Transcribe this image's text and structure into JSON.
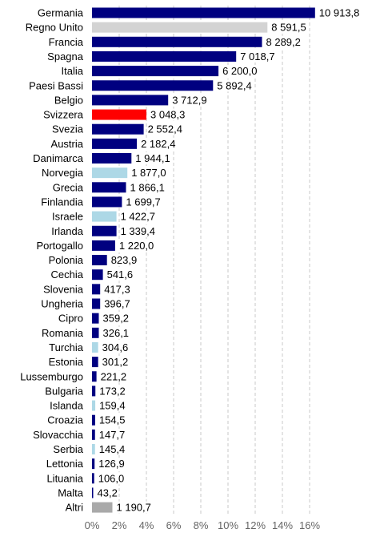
{
  "chart_data": {
    "type": "bar",
    "orientation": "horizontal",
    "categories": [
      "Germania",
      "Regno Unito",
      "Francia",
      "Spagna",
      "Italia",
      "Paesi Bassi",
      "Belgio",
      "Svizzera",
      "Svezia",
      "Austria",
      "Danimarca",
      "Norvegia",
      "Grecia",
      "Finlandia",
      "Israele",
      "Irlanda",
      "Portogallo",
      "Polonia",
      "Cechia",
      "Slovenia",
      "Ungheria",
      "Cipro",
      "Romania",
      "Turchia",
      "Estonia",
      "Lussemburgo",
      "Bulgaria",
      "Islanda",
      "Croazia",
      "Slovacchia",
      "Serbia",
      "Lettonia",
      "Lituania",
      "Malta",
      "Altri"
    ],
    "value_labels": [
      "10 913,8",
      "8 591,5",
      "8 289,2",
      "7 018,7",
      "6 200,0",
      "5 892,4",
      "3 712,9",
      "3 048,3",
      "2 552,4",
      "2 182,4",
      "1 944,1",
      "1 877,0",
      "1 866,1",
      "1 699,7",
      "1 422,7",
      "1 339,4",
      "1 220,0",
      "823,9",
      "541,6",
      "417,3",
      "396,7",
      "359,2",
      "326,1",
      "304,6",
      "301,2",
      "221,2",
      "173,2",
      "159,4",
      "154,5",
      "147,7",
      "145,4",
      "126,9",
      "106,0",
      "43,2",
      "1 190,7"
    ],
    "percent_share": [
      16.4,
      12.9,
      12.5,
      10.6,
      9.3,
      8.9,
      5.6,
      4.0,
      3.8,
      3.3,
      2.9,
      2.6,
      2.5,
      2.2,
      1.8,
      1.8,
      1.7,
      1.1,
      0.8,
      0.6,
      0.6,
      0.5,
      0.5,
      0.45,
      0.45,
      0.33,
      0.25,
      0.24,
      0.23,
      0.22,
      0.22,
      0.19,
      0.16,
      0.07,
      1.5
    ],
    "bar_colors": [
      "#000080",
      "#d3d3d3",
      "#000080",
      "#000080",
      "#000080",
      "#000080",
      "#000080",
      "#ff0000",
      "#000080",
      "#000080",
      "#000080",
      "#add8e6",
      "#000080",
      "#000080",
      "#add8e6",
      "#000080",
      "#000080",
      "#000080",
      "#000080",
      "#000080",
      "#000080",
      "#000080",
      "#000080",
      "#add8e6",
      "#000080",
      "#000080",
      "#000080",
      "#add8e6",
      "#000080",
      "#000080",
      "#add8e6",
      "#000080",
      "#000080",
      "#000080",
      "#a9a9a9"
    ],
    "x_ticks": [
      "0%",
      "2%",
      "4%",
      "6%",
      "8%",
      "10%",
      "12%",
      "14%",
      "16%"
    ],
    "xlim": [
      0,
      16
    ],
    "grid": "vertical dashed",
    "colors": {
      "default": "#000080",
      "highlight": "#ff0000",
      "light": "#add8e6",
      "uk": "#d3d3d3",
      "others": "#a9a9a9",
      "grid": "#c8c8c8",
      "tick_text": "#666666"
    }
  }
}
